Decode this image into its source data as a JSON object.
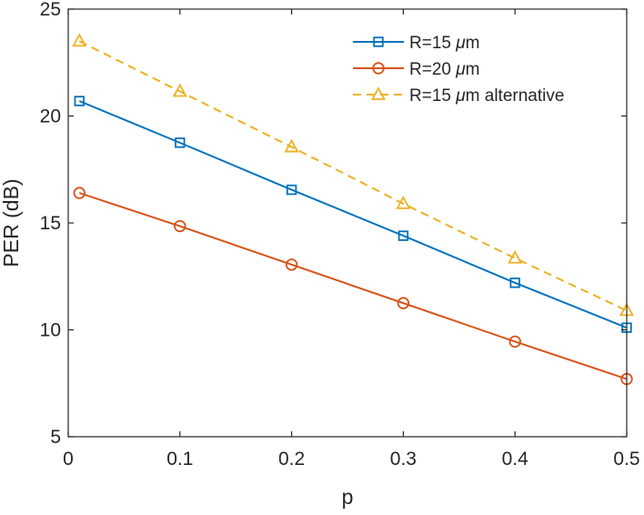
{
  "chart_data": {
    "type": "line",
    "title": "",
    "xlabel": "p",
    "ylabel": "PER (dB)",
    "xlim": [
      0,
      0.5
    ],
    "ylim": [
      5,
      25
    ],
    "xticks": [
      0,
      0.1,
      0.2,
      0.3,
      0.4,
      0.5
    ],
    "xtick_labels": [
      "0",
      "0.1",
      "0.2",
      "0.3",
      "0.4",
      "0.5"
    ],
    "yticks": [
      5,
      10,
      15,
      20,
      25
    ],
    "ytick_labels": [
      "5",
      "10",
      "15",
      "20",
      "25"
    ],
    "grid": false,
    "legend_position": "top-right",
    "series": [
      {
        "name": "R=15 μm",
        "label_prefix": "R=15 ",
        "label_greek": "μ",
        "label_suffix": "m",
        "color": "#0072BD",
        "marker": "square",
        "line_style": "solid",
        "x": [
          0.01,
          0.1,
          0.2,
          0.3,
          0.4,
          0.5
        ],
        "y": [
          20.7,
          18.75,
          16.55,
          14.4,
          12.2,
          10.1
        ]
      },
      {
        "name": "R=20 μm",
        "label_prefix": "R=20 ",
        "label_greek": "μ",
        "label_suffix": "m",
        "color": "#D95319",
        "marker": "circle",
        "line_style": "solid",
        "x": [
          0.01,
          0.1,
          0.2,
          0.3,
          0.4,
          0.5
        ],
        "y": [
          16.4,
          14.85,
          13.05,
          11.25,
          9.45,
          7.7
        ]
      },
      {
        "name": "R=15 μm alternative",
        "label_prefix": "R=15 ",
        "label_greek": "μ",
        "label_suffix": "m alternative",
        "color": "#EDB120",
        "marker": "triangle",
        "line_style": "dashed",
        "x": [
          0.01,
          0.1,
          0.2,
          0.3,
          0.4,
          0.5
        ],
        "y": [
          23.5,
          21.15,
          18.55,
          15.9,
          13.35,
          10.9
        ]
      }
    ]
  }
}
